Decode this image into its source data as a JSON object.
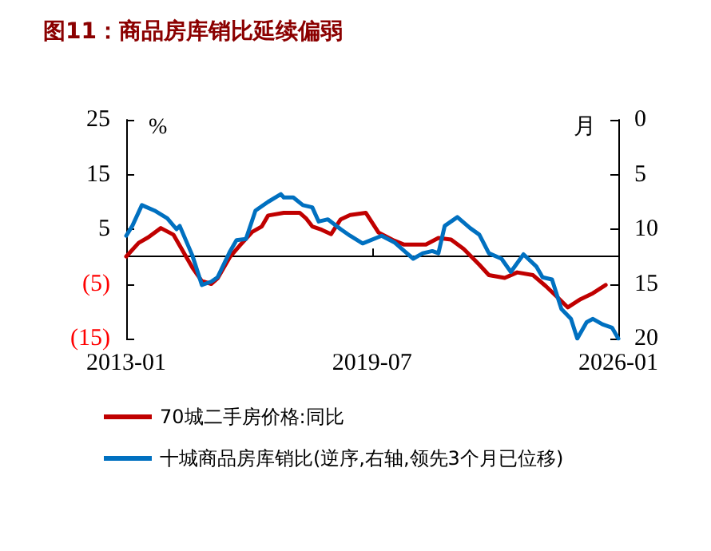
{
  "chart_data": {
    "type": "line",
    "title": "图11：商品房库销比延续偏弱",
    "ylabel": "%",
    "y2label": "月",
    "xlim": [
      "2013-01",
      "2026-01"
    ],
    "xticks": [
      "2013-01",
      "2019-07",
      "2026-01"
    ],
    "ylim": [
      -15,
      25
    ],
    "yticks": [
      25,
      15,
      5,
      {
        "value": -5,
        "label": "(5)"
      },
      {
        "value": -15,
        "label": "(15)"
      }
    ],
    "y2lim": [
      20,
      0
    ],
    "y2ticks": [
      0,
      5,
      10,
      15,
      20
    ],
    "grid": false,
    "legend": "bottom",
    "marker": "none",
    "line_style": "solid",
    "series": [
      {
        "name": "70城二手房价格:同比",
        "color": "#c00000",
        "x": [
          "2013-01",
          "2013-05",
          "2013-08",
          "2013-12",
          "2014-04",
          "2014-06",
          "2014-10",
          "2015-01",
          "2015-04",
          "2015-06",
          "2015-10",
          "2016-01",
          "2016-05",
          "2016-08",
          "2016-10",
          "2017-03",
          "2017-08",
          "2017-10",
          "2017-12",
          "2018-03",
          "2018-06",
          "2018-09",
          "2018-12",
          "2019-05",
          "2019-09",
          "2020-02",
          "2020-05",
          "2020-12",
          "2021-04",
          "2021-08",
          "2021-12",
          "2022-05",
          "2022-08",
          "2023-01",
          "2023-05",
          "2023-10",
          "2024-02",
          "2024-06",
          "2024-09",
          "2025-01",
          "2025-05",
          "2025-09"
        ],
        "values": [
          0,
          2.5,
          3.5,
          5.2,
          4,
          2,
          -2,
          -4.5,
          -5,
          -4,
          0,
          2,
          4.5,
          5.5,
          7.5,
          8,
          8,
          7,
          5.5,
          4.9,
          4.1,
          6.8,
          7.6,
          8,
          4.4,
          2.9,
          2.2,
          2.2,
          3.4,
          3.1,
          1.4,
          -1.5,
          -3.4,
          -3.9,
          -2.9,
          -3.4,
          -5.4,
          -7.6,
          -9.3,
          -7.8,
          -6.7,
          -5.2
        ]
      },
      {
        "name": "十城商品房库销比(逆序,右轴,领先3个月已位移)",
        "color": "#0070c0",
        "axis": "y2",
        "x": [
          "2013-01",
          "2013-03",
          "2013-06",
          "2013-10",
          "2014-02",
          "2014-05",
          "2014-06",
          "2014-10",
          "2015-01",
          "2015-04",
          "2015-06",
          "2015-10",
          "2015-12",
          "2016-03",
          "2016-06",
          "2016-10",
          "2017-02",
          "2017-03",
          "2017-06",
          "2017-09",
          "2017-12",
          "2018-02",
          "2018-05",
          "2018-09",
          "2018-12",
          "2019-04",
          "2019-10",
          "2020-02",
          "2020-06",
          "2020-08",
          "2020-11",
          "2021-02",
          "2021-04",
          "2021-06",
          "2021-10",
          "2022-02",
          "2022-05",
          "2022-08",
          "2022-12",
          "2023-03",
          "2023-07",
          "2023-11",
          "2024-01",
          "2024-04",
          "2024-07",
          "2024-10",
          "2024-12",
          "2025-03",
          "2025-05",
          "2025-08",
          "2025-11",
          "2026-01"
        ],
        "values": [
          10.6,
          9.7,
          7.8,
          8.3,
          9.0,
          10.0,
          9.7,
          12.4,
          15.1,
          14.8,
          14.4,
          12.0,
          11.0,
          10.9,
          8.3,
          7.5,
          6.8,
          7.1,
          7.1,
          7.8,
          8.0,
          9.3,
          9.1,
          10.0,
          10.6,
          11.3,
          10.6,
          11.2,
          12.2,
          12.7,
          12.2,
          12.0,
          12.2,
          9.7,
          8.9,
          9.9,
          10.5,
          12.2,
          12.7,
          13.9,
          12.3,
          13.4,
          14.4,
          14.6,
          17.3,
          18.2,
          20,
          18.5,
          18.2,
          18.7,
          19.0,
          20
        ]
      }
    ]
  }
}
